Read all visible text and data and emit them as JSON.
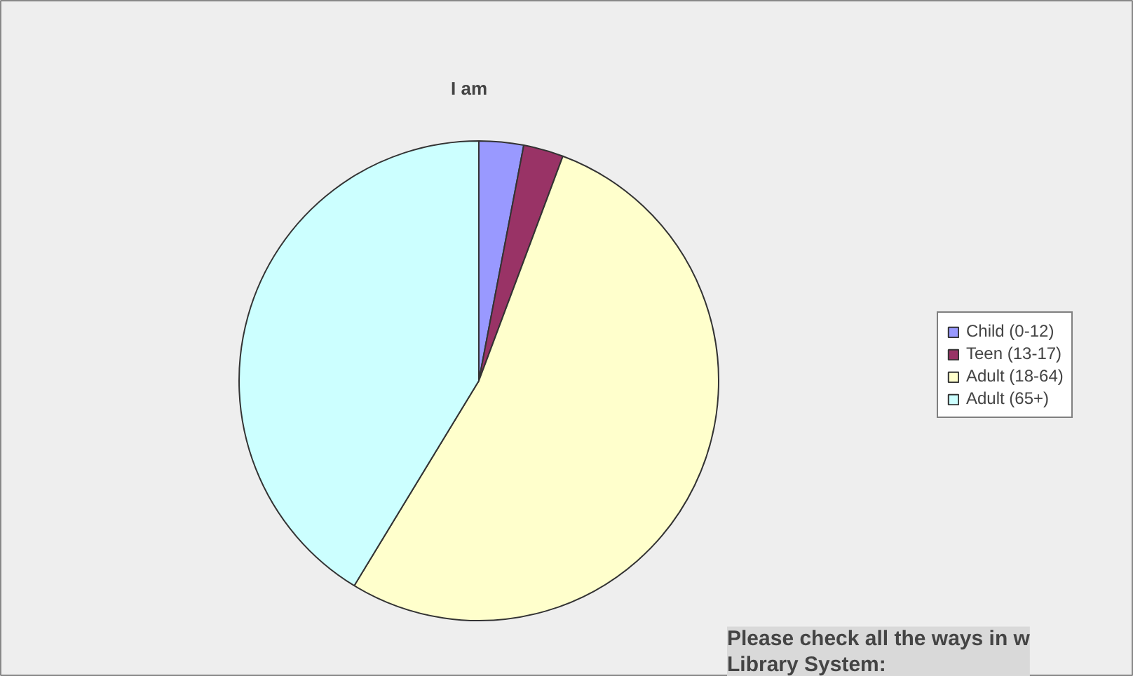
{
  "chart_data": {
    "type": "pie",
    "title": "I am",
    "categories": [
      "Child (0-12)",
      "Teen (13-17)",
      "Adult (18-64)",
      "Adult (65+)"
    ],
    "values": [
      3,
      2.7,
      53,
      41.3
    ],
    "colors": [
      "#9999ff",
      "#993366",
      "#ffffcc",
      "#ccffff"
    ],
    "legend": "right",
    "annotations": [
      "Please check all the ways in w\nLibrary System:"
    ]
  }
}
